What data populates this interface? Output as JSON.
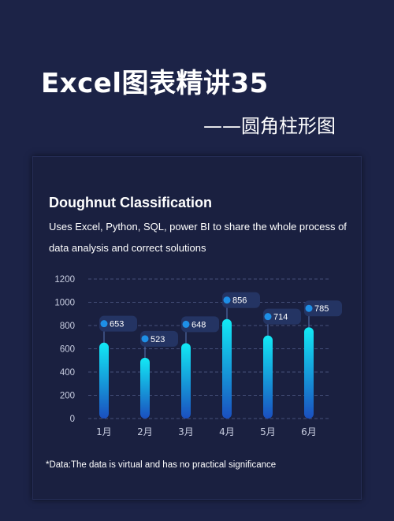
{
  "header": {
    "title": "Excel图表精讲35",
    "subtitle": "——圆角柱形图"
  },
  "card": {
    "title": "Doughnut Classification",
    "description": "Uses Excel, Python, SQL, power BI to share the whole process of data analysis and correct solutions",
    "footnote": "*Data:The data is virtual and has no practical significance"
  },
  "colors": {
    "background": "#1c2347",
    "card": "#1a2040",
    "bar_top": "#12e9f5",
    "bar_bottom": "#1a4fbf",
    "marker": "#1e8fe6",
    "label_box": "#243463"
  },
  "chart_data": {
    "type": "bar",
    "categories": [
      "1月",
      "2月",
      "3月",
      "4月",
      "5月",
      "6月"
    ],
    "values": [
      653,
      523,
      648,
      856,
      714,
      785
    ],
    "y_ticks": [
      0,
      200,
      400,
      600,
      800,
      1000,
      1200
    ],
    "ylim": [
      0,
      1200
    ],
    "grid": "horizontal dashed",
    "bar_style": "rounded gradient",
    "data_labels": true
  }
}
